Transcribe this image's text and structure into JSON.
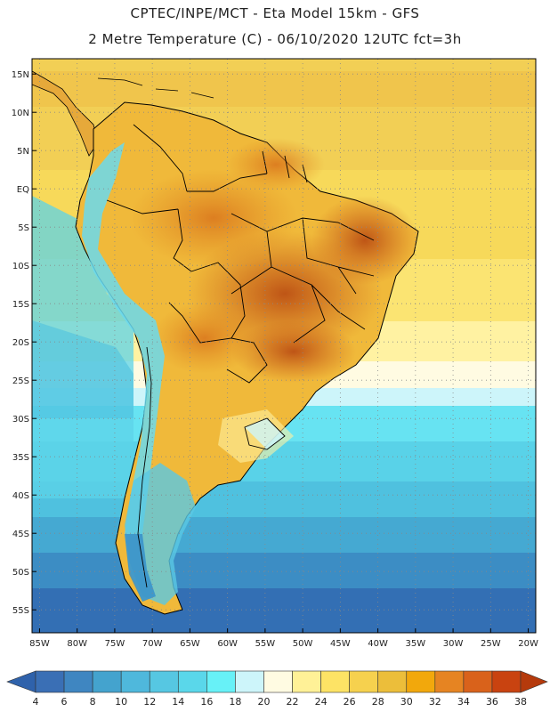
{
  "header": {
    "line1": "CPTEC/INPE/MCT -  Eta Model 15km - GFS",
    "line2": "2 Metre Temperature (C) - 06/10/2020 12UTC fct=3h"
  },
  "axes": {
    "lat_labels": [
      "15N",
      "10N",
      "5N",
      "EQ",
      "5S",
      "10S",
      "15S",
      "20S",
      "25S",
      "30S",
      "35S",
      "40S",
      "45S",
      "50S",
      "55S"
    ],
    "lat_values": [
      15,
      10,
      5,
      0,
      -5,
      -10,
      -15,
      -20,
      -25,
      -30,
      -35,
      -40,
      -45,
      -50,
      -55
    ],
    "lon_labels": [
      "85W",
      "80W",
      "75W",
      "70W",
      "65W",
      "60W",
      "55W",
      "50W",
      "45W",
      "40W",
      "35W",
      "30W",
      "25W",
      "20W"
    ],
    "lon_values": [
      -85,
      -80,
      -75,
      -70,
      -65,
      -60,
      -55,
      -50,
      -45,
      -40,
      -35,
      -30,
      -25,
      -20
    ],
    "lat_range": [
      -58,
      17
    ],
    "lon_range": [
      -86,
      -19
    ]
  },
  "colorbar": {
    "labels": [
      "4",
      "6",
      "8",
      "10",
      "12",
      "14",
      "16",
      "18",
      "20",
      "22",
      "24",
      "26",
      "28",
      "30",
      "32",
      "34",
      "36",
      "38"
    ],
    "colors": [
      "#3a6fb5",
      "#3f86c1",
      "#44a3ce",
      "#4fb8dc",
      "#56c7e2",
      "#5ad7ea",
      "#67f1f7",
      "#cdf5fa",
      "#fffbe2",
      "#fff197",
      "#fde365",
      "#f6d14e",
      "#ecbe3a",
      "#f2a80c",
      "#e68422",
      "#d9621b",
      "#c94310"
    ],
    "low_color": "#2f62ab",
    "high_color": "#b53a0c"
  }
}
